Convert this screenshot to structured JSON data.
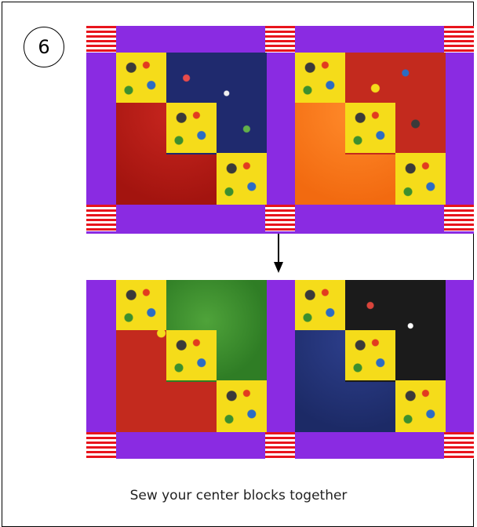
{
  "step": {
    "number": "6"
  },
  "caption": "Sew your center blocks together",
  "colors": {
    "border": "#8a2be2",
    "stripe_red": "#e8141c",
    "stripe_white": "#ffffff",
    "yellow_print": "#f5dc1a",
    "navy_print": "#1f2a6e",
    "red": "#c8261f",
    "orange": "#f26a10",
    "green": "#2f7d25",
    "dark_blue": "#1c2a66",
    "black_print": "#1b1b1b"
  },
  "blocks": {
    "top_left": [
      "yellow-print",
      "navy-print",
      "red"
    ],
    "top_right": [
      "yellow-print",
      "red-print",
      "orange"
    ],
    "bottom_left": [
      "yellow-print",
      "green",
      "red-print"
    ],
    "bottom_right": [
      "yellow-print",
      "black-print",
      "dark-blue"
    ]
  }
}
